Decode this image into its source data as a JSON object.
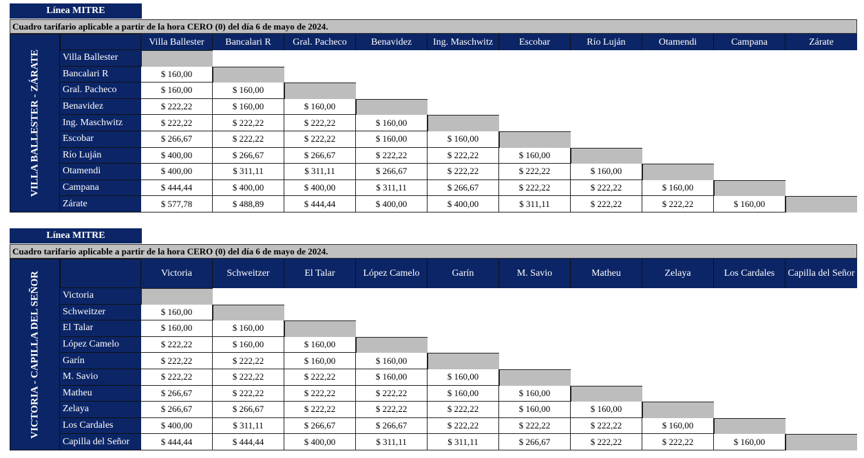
{
  "tables": [
    {
      "title": "Línea MITRE",
      "subtitle": "Cuadro tarifario aplicable a partir de la hora CERO (0) del día 6 de mayo de 2024.",
      "branch": "VILLA BALLESTER - ZÁRATE",
      "stations": [
        "Villa Ballester",
        "Bancalari R",
        "Gral. Pacheco",
        "Benavidez",
        "Ing. Maschwitz",
        "Escobar",
        "Río Luján",
        "Otamendi",
        "Campana",
        "Zárate"
      ],
      "fares": [
        [],
        [
          "$ 160,00"
        ],
        [
          "$ 160,00",
          "$ 160,00"
        ],
        [
          "$ 222,22",
          "$ 160,00",
          "$ 160,00"
        ],
        [
          "$ 222,22",
          "$ 222,22",
          "$ 222,22",
          "$ 160,00"
        ],
        [
          "$ 266,67",
          "$ 222,22",
          "$ 222,22",
          "$ 160,00",
          "$ 160,00"
        ],
        [
          "$ 400,00",
          "$ 266,67",
          "$ 266,67",
          "$ 222,22",
          "$ 222,22",
          "$ 160,00"
        ],
        [
          "$ 400,00",
          "$ 311,11",
          "$ 311,11",
          "$ 266,67",
          "$ 222,22",
          "$ 222,22",
          "$ 160,00"
        ],
        [
          "$ 444,44",
          "$ 400,00",
          "$ 400,00",
          "$ 311,11",
          "$ 266,67",
          "$ 222,22",
          "$ 222,22",
          "$ 160,00"
        ],
        [
          "$ 577,78",
          "$ 488,89",
          "$ 444,44",
          "$ 400,00",
          "$ 400,00",
          "$ 311,11",
          "$ 222,22",
          "$ 222,22",
          "$ 160,00"
        ]
      ]
    },
    {
      "title": "Línea MITRE",
      "subtitle": "Cuadro tarifario aplicable a partir de la hora CERO (0) del día 6 de mayo de 2024.",
      "branch": "VICTORIA - CAPILLA DEL SEÑOR",
      "stations": [
        "Victoria",
        "Schweitzer",
        "El Talar",
        "López Camelo",
        "Garín",
        "M. Savio",
        "Matheu",
        "Zelaya",
        "Los Cardales",
        "Capilla del Señor"
      ],
      "fares": [
        [],
        [
          "$ 160,00"
        ],
        [
          "$ 160,00",
          "$ 160,00"
        ],
        [
          "$ 222,22",
          "$ 160,00",
          "$ 160,00"
        ],
        [
          "$ 222,22",
          "$ 222,22",
          "$ 160,00",
          "$ 160,00"
        ],
        [
          "$ 222,22",
          "$ 222,22",
          "$ 222,22",
          "$ 160,00",
          "$ 160,00"
        ],
        [
          "$ 266,67",
          "$ 222,22",
          "$ 222,22",
          "$ 222,22",
          "$ 160,00",
          "$ 160,00"
        ],
        [
          "$ 266,67",
          "$ 266,67",
          "$ 222,22",
          "$ 222,22",
          "$ 222,22",
          "$ 160,00",
          "$ 160,00"
        ],
        [
          "$ 400,00",
          "$ 311,11",
          "$ 266,67",
          "$ 266,67",
          "$ 222,22",
          "$ 222,22",
          "$ 222,22",
          "$ 160,00"
        ],
        [
          "$ 444,44",
          "$ 444,44",
          "$ 400,00",
          "$ 311,11",
          "$ 311,11",
          "$ 266,67",
          "$ 222,22",
          "$ 222,22",
          "$ 160,00"
        ]
      ]
    }
  ]
}
